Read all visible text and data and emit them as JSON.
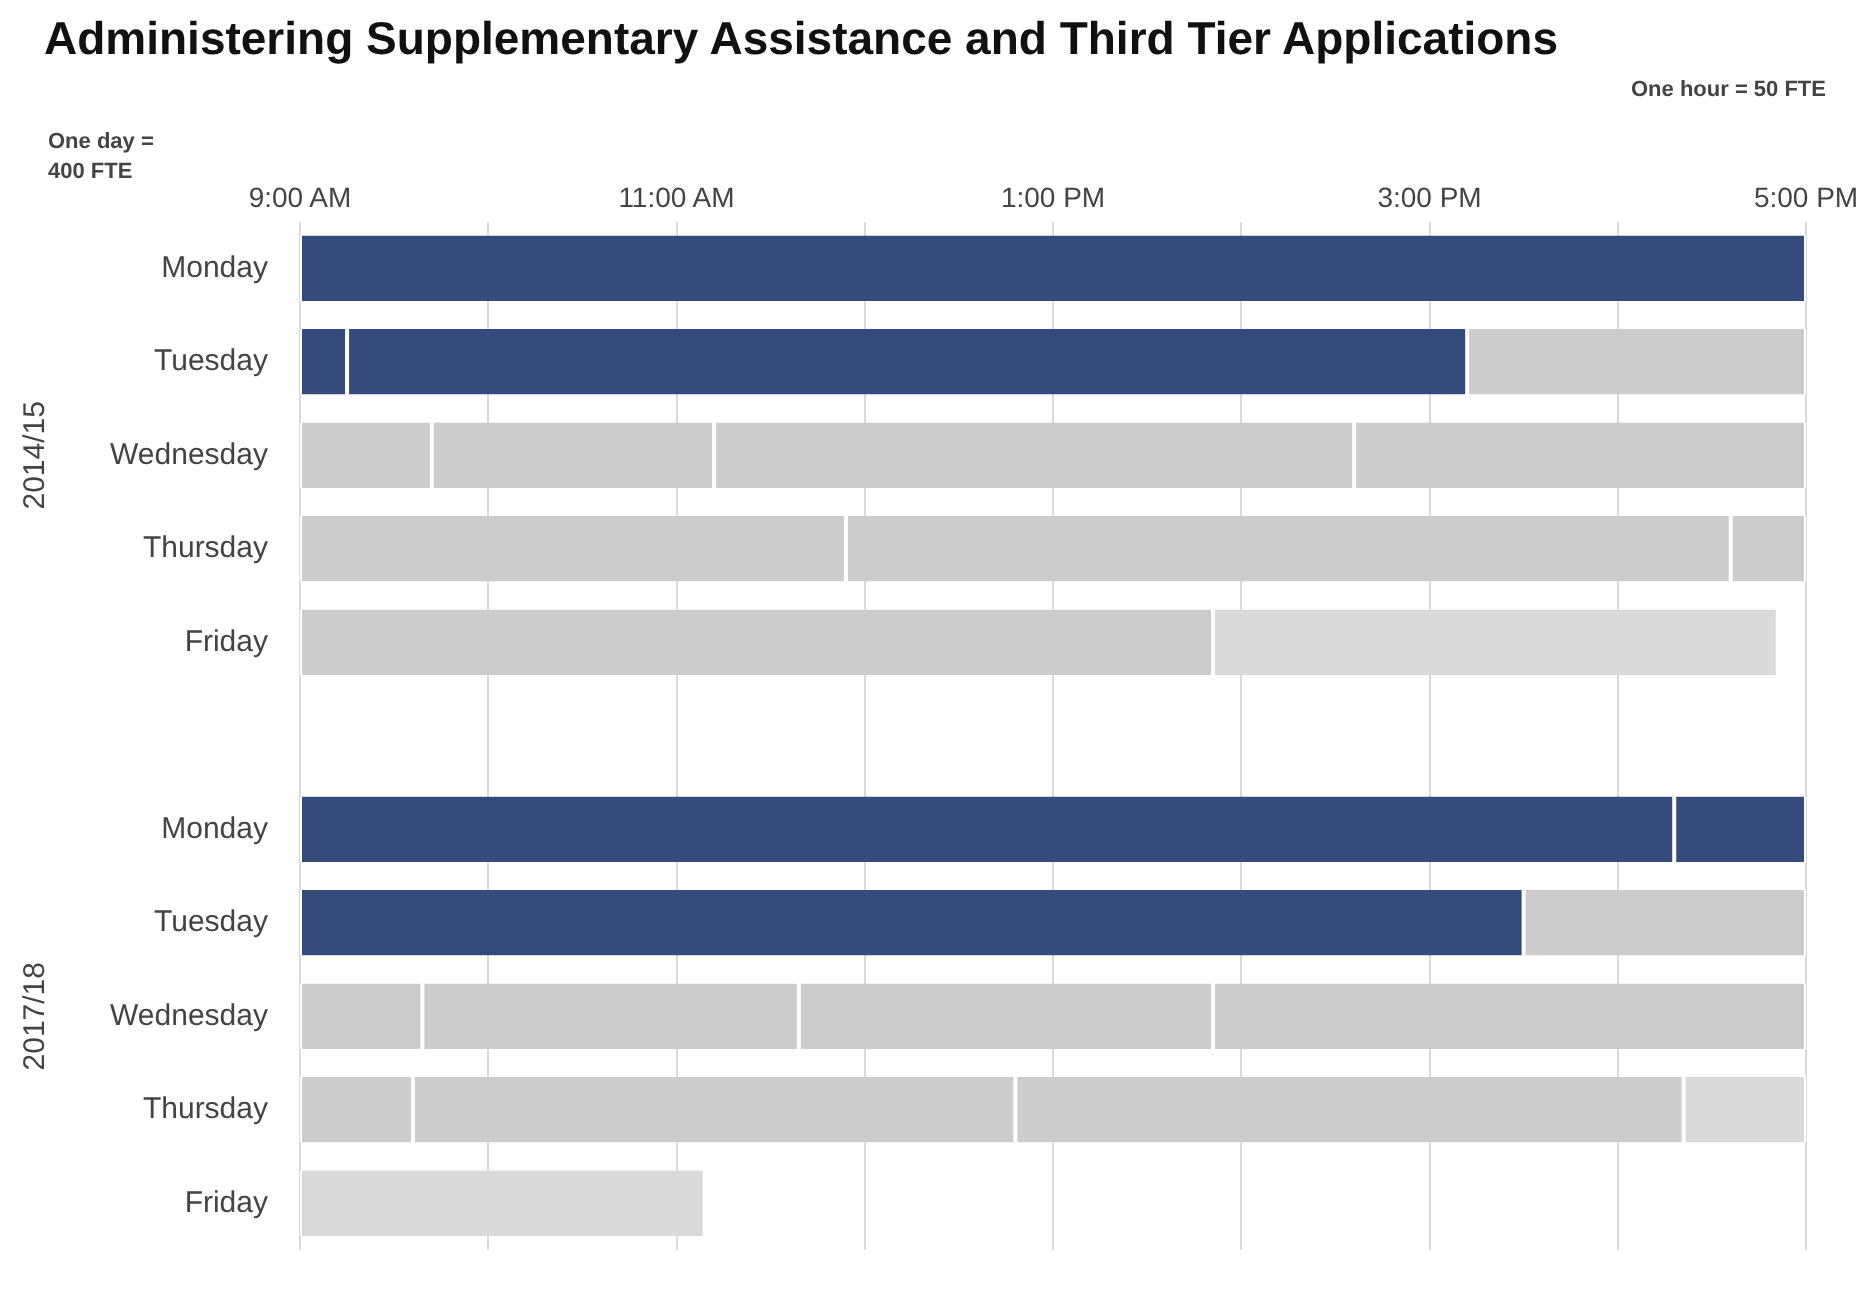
{
  "chart_data": {
    "type": "bar",
    "orientation": "horizontal",
    "title": "Administering Supplementary Assistance and Third Tier Applications",
    "annotations": [
      "2014/15",
      "2017/18",
      "One day = 400 FTE",
      "One hour = 50 FTE"
    ],
    "categories": [
      "Monday",
      "Tuesday",
      "Wednesday",
      "Thursday",
      "Friday",
      null,
      "Monday",
      "Tuesday",
      "Wednesday",
      "Thursday",
      "Friday"
    ],
    "xlim": [
      9,
      17
    ],
    "xticks": [
      {
        "value": 9,
        "label": "9:00 AM"
      },
      {
        "value": 10,
        "label": null
      },
      {
        "value": 11,
        "label": "11:00 AM"
      },
      {
        "value": 12,
        "label": null
      },
      {
        "value": 13,
        "label": "1:00 PM"
      },
      {
        "value": 14,
        "label": null
      },
      {
        "value": 15,
        "label": "3:00 PM"
      },
      {
        "value": 16,
        "label": null
      },
      {
        "value": 17,
        "label": "5:00 PM"
      }
    ],
    "grid": "x",
    "legend": false,
    "series": [
      {
        "base": [
          9,
          9,
          9,
          9,
          9,
          null,
          9,
          9,
          9,
          9,
          null
        ],
        "values": [
          8,
          0.25,
          0.7,
          2.9,
          4.85,
          null,
          7.3,
          6.5,
          0.65,
          0.6,
          null
        ],
        "colors": [
          "#344b7b",
          "#344b7b",
          "#cccccc",
          "#cccccc",
          "#cccccc",
          "#cccccc",
          "#344b7b",
          "#344b7b",
          "#cccccc",
          "#cccccc",
          "#cccccc"
        ]
      },
      {
        "base": [
          null,
          9.25,
          9.7,
          11.9,
          null,
          null,
          16.3,
          15.5,
          9.65,
          9.6,
          null
        ],
        "values": [
          null,
          5.95,
          1.5,
          4.7,
          null,
          null,
          0.7,
          1.5,
          2.0,
          3.2,
          null
        ],
        "colors": [
          "#cccccc",
          "#344b7b",
          "#cccccc",
          "#cccccc",
          "#cccccc",
          "#cccccc",
          "#344b7b",
          "#cccccc",
          "#cccccc",
          "#cccccc",
          "#cccccc"
        ]
      },
      {
        "base": [
          null,
          15.2,
          11.2,
          16.6,
          null,
          null,
          null,
          null,
          11.65,
          12.8,
          null
        ],
        "values": [
          null,
          1.8,
          3.4,
          0.4,
          null,
          null,
          null,
          null,
          2.2,
          3.55,
          null
        ],
        "color": "#cccccc"
      },
      {
        "base": [
          null,
          null,
          14.6,
          null,
          null,
          null,
          null,
          null,
          13.85,
          null,
          null
        ],
        "values": [
          null,
          null,
          2.4,
          null,
          null,
          null,
          null,
          null,
          3.15,
          null,
          null
        ],
        "color": "#cccccc"
      },
      {
        "base": [
          null,
          null,
          null,
          null,
          13.85,
          null,
          null,
          null,
          null,
          16.35,
          9
        ],
        "values": [
          null,
          null,
          null,
          null,
          3.0,
          null,
          null,
          null,
          null,
          0.65,
          2.15
        ],
        "color": "#dadada"
      }
    ]
  }
}
